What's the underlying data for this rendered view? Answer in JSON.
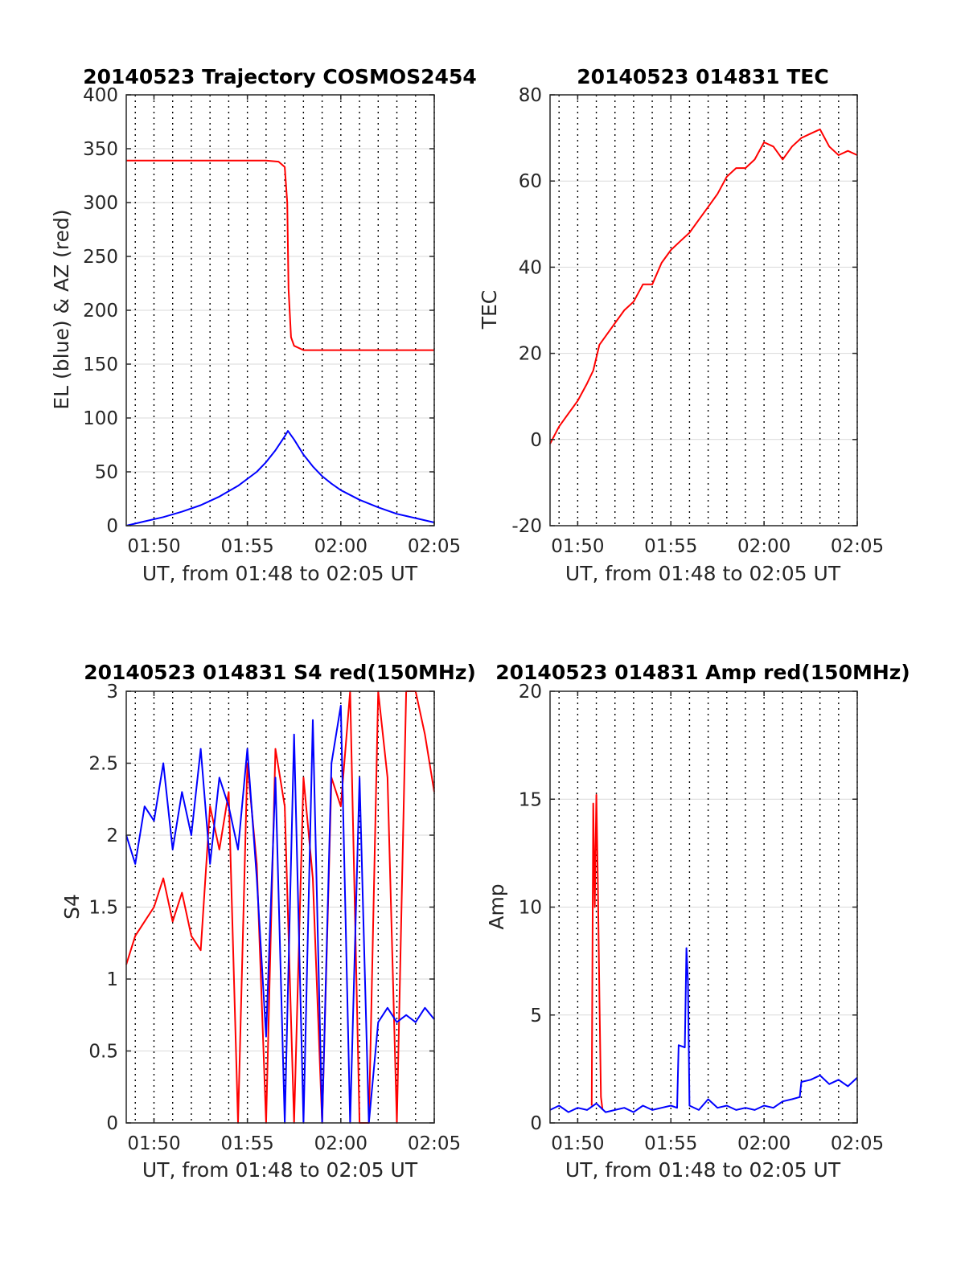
{
  "colors": {
    "red": "#ff0000",
    "blue": "#0000ff",
    "grid": "#d9d9d9",
    "axis": "#262626"
  },
  "chart_data": [
    {
      "type": "line",
      "title": "20140523 Trajectory COSMOS2454",
      "xlabel": "UT, from 01:48 to 02:05 UT",
      "ylabel": "EL (blue) & AZ (red)",
      "xlim": [
        "01:48:31",
        "02:05:00"
      ],
      "ylim": [
        0,
        400
      ],
      "yticks": [
        0,
        50,
        100,
        150,
        200,
        250,
        300,
        350,
        400
      ],
      "xticks": [
        "01:50",
        "01:55",
        "02:00",
        "02:05"
      ],
      "grid": {
        "x": "dotted-minute",
        "y": "major"
      },
      "series": [
        {
          "color": "red",
          "x": [
            "01:48:31",
            "01:50:00",
            "01:52:00",
            "01:54:00",
            "01:56:00",
            "01:56:40",
            "01:57:00",
            "01:57:08",
            "01:57:12",
            "01:57:20",
            "01:57:30",
            "01:58:00",
            "02:00:00",
            "02:05:00"
          ],
          "values": [
            339,
            339,
            339,
            339,
            339,
            338,
            333,
            300,
            220,
            175,
            167,
            163,
            163,
            163
          ]
        },
        {
          "color": "blue",
          "x": [
            "01:48:31",
            "01:49:30",
            "01:50:30",
            "01:51:30",
            "01:52:30",
            "01:53:30",
            "01:54:30",
            "01:55:30",
            "01:56:00",
            "01:56:30",
            "01:57:00",
            "01:57:10",
            "01:57:30",
            "01:58:00",
            "01:58:30",
            "01:59:00",
            "01:59:30",
            "02:00:00",
            "02:01:00",
            "02:02:00",
            "02:03:00",
            "02:04:00",
            "02:05:00"
          ],
          "values": [
            0,
            4,
            8,
            13,
            19,
            27,
            37,
            50,
            59,
            70,
            83,
            88,
            80,
            66,
            55,
            46,
            39,
            33,
            24,
            17,
            11,
            7,
            3
          ]
        }
      ]
    },
    {
      "type": "line",
      "title": "20140523 014831 TEC",
      "xlabel": "UT, from 01:48 to 02:05 UT",
      "ylabel": "TEC",
      "xlim": [
        "01:48:31",
        "02:05:00"
      ],
      "ylim": [
        -20,
        80
      ],
      "yticks": [
        -20,
        0,
        20,
        40,
        60,
        80
      ],
      "xticks": [
        "01:50",
        "01:55",
        "02:00",
        "02:05"
      ],
      "grid": {
        "x": "dotted-minute",
        "y": "major"
      },
      "series": [
        {
          "color": "red",
          "x": [
            "01:48:31",
            "01:49:00",
            "01:49:30",
            "01:50:00",
            "01:50:30",
            "01:50:50",
            "01:51:10",
            "01:51:40",
            "01:52:00",
            "01:52:30",
            "01:53:00",
            "01:53:30",
            "01:54:00",
            "01:54:30",
            "01:55:00",
            "01:55:30",
            "01:56:00",
            "01:56:30",
            "01:57:00",
            "01:57:30",
            "01:58:00",
            "01:58:30",
            "01:59:00",
            "01:59:30",
            "02:00:00",
            "02:00:30",
            "02:01:00",
            "02:01:30",
            "02:02:00",
            "02:02:30",
            "02:03:00",
            "02:03:30",
            "02:04:00",
            "02:04:30",
            "02:05:00"
          ],
          "values": [
            -1,
            3,
            6,
            9,
            13,
            16,
            22,
            25,
            27,
            30,
            32,
            36,
            36,
            41,
            44,
            46,
            48,
            51,
            54,
            57,
            61,
            63,
            63,
            65,
            69,
            68,
            65,
            68,
            70,
            71,
            72,
            68,
            66,
            67,
            66
          ]
        }
      ]
    },
    {
      "type": "line",
      "title": "20140523 014831 S4 red(150MHz)",
      "xlabel": "UT, from 01:48 to 02:05 UT",
      "ylabel": "S4",
      "xlim": [
        "01:48:31",
        "02:05:00"
      ],
      "ylim": [
        0,
        3
      ],
      "yticks": [
        0,
        0.5,
        1,
        1.5,
        2,
        2.5,
        3
      ],
      "xticks": [
        "01:50",
        "01:55",
        "02:00",
        "02:05"
      ],
      "grid": {
        "x": "dotted-minute",
        "y": "major"
      },
      "series": [
        {
          "color": "red",
          "x": [
            "01:48:31",
            "01:49:00",
            "01:49:30",
            "01:50:00",
            "01:50:30",
            "01:51:00",
            "01:51:30",
            "01:52:00",
            "01:52:30",
            "01:53:00",
            "01:53:30",
            "01:54:00",
            "01:54:30",
            "01:55:00",
            "01:55:30",
            "01:56:00",
            "01:56:30",
            "01:57:00",
            "01:57:30",
            "01:58:00",
            "01:58:30",
            "01:59:00",
            "01:59:30",
            "02:00:00",
            "02:00:30",
            "02:01:00",
            "02:01:30",
            "02:02:00",
            "02:02:30",
            "02:03:00",
            "02:03:30",
            "02:04:00",
            "02:04:30",
            "02:05:00"
          ],
          "values": [
            1.1,
            1.3,
            1.4,
            1.5,
            1.7,
            1.4,
            1.6,
            1.3,
            1.2,
            2.2,
            1.9,
            2.3,
            0,
            2.5,
            1.8,
            0,
            2.6,
            2.2,
            0,
            2.4,
            1.7,
            0,
            2.4,
            2.2,
            3,
            0,
            0,
            3,
            2.4,
            0,
            3,
            3,
            2.7,
            2.3
          ]
        },
        {
          "color": "blue",
          "x": [
            "01:48:31",
            "01:49:00",
            "01:49:30",
            "01:50:00",
            "01:50:30",
            "01:51:00",
            "01:51:30",
            "01:52:00",
            "01:52:30",
            "01:53:00",
            "01:53:30",
            "01:54:00",
            "01:54:30",
            "01:55:00",
            "01:55:30",
            "01:56:00",
            "01:56:30",
            "01:57:00",
            "01:57:30",
            "01:58:00",
            "01:58:30",
            "01:59:00",
            "01:59:30",
            "02:00:00",
            "02:00:30",
            "02:01:00",
            "02:01:30",
            "02:02:00",
            "02:02:30",
            "02:03:00",
            "02:03:30",
            "02:04:00",
            "02:04:30",
            "02:05:00"
          ],
          "values": [
            2.0,
            1.8,
            2.2,
            2.1,
            2.5,
            1.9,
            2.3,
            2.0,
            2.6,
            1.8,
            2.4,
            2.2,
            1.9,
            2.6,
            1.7,
            0.6,
            2.4,
            0,
            2.7,
            0,
            2.8,
            0,
            2.5,
            2.9,
            0,
            2.4,
            0,
            0.7,
            0.8,
            0.7,
            0.75,
            0.7,
            0.8,
            0.72
          ]
        }
      ]
    },
    {
      "type": "line",
      "title": "20140523 014831 Amp red(150MHz)",
      "xlabel": "UT, from 01:48 to 02:05 UT",
      "ylabel": "Amp",
      "xlim": [
        "01:48:31",
        "02:05:00"
      ],
      "ylim": [
        0,
        20
      ],
      "yticks": [
        0,
        5,
        10,
        15,
        20
      ],
      "xticks": [
        "01:50",
        "01:55",
        "02:00",
        "02:05"
      ],
      "grid": {
        "x": "dotted-minute",
        "y": "major"
      },
      "series": [
        {
          "color": "red",
          "x": [
            "01:50:45",
            "01:50:50",
            "01:50:55",
            "01:51:00",
            "01:51:05",
            "01:51:10",
            "01:51:15",
            "01:51:20"
          ],
          "values": [
            0.8,
            14.8,
            10,
            15.2,
            11,
            5.8,
            1.2,
            0.6
          ]
        },
        {
          "color": "blue",
          "x": [
            "01:48:31",
            "01:49:00",
            "01:49:30",
            "01:50:00",
            "01:50:30",
            "01:51:00",
            "01:51:30",
            "01:52:00",
            "01:52:30",
            "01:53:00",
            "01:53:30",
            "01:54:00",
            "01:54:30",
            "01:55:00",
            "01:55:20",
            "01:55:25",
            "01:55:45",
            "01:55:50",
            "01:55:55",
            "01:56:00",
            "01:56:30",
            "01:57:00",
            "01:57:30",
            "01:58:00",
            "01:58:30",
            "01:59:00",
            "01:59:30",
            "02:00:00",
            "02:00:30",
            "02:01:00",
            "02:01:30",
            "02:01:55",
            "02:02:00",
            "02:02:30",
            "02:03:00",
            "02:03:30",
            "02:04:00",
            "02:04:30",
            "02:05:00"
          ],
          "values": [
            0.6,
            0.8,
            0.5,
            0.7,
            0.6,
            0.9,
            0.5,
            0.6,
            0.7,
            0.5,
            0.8,
            0.6,
            0.7,
            0.8,
            0.7,
            3.6,
            3.5,
            8.1,
            6.5,
            0.8,
            0.6,
            1.1,
            0.7,
            0.8,
            0.6,
            0.7,
            0.6,
            0.8,
            0.7,
            1.0,
            1.1,
            1.2,
            1.9,
            2.0,
            2.2,
            1.8,
            2.0,
            1.7,
            2.1
          ]
        }
      ]
    }
  ]
}
